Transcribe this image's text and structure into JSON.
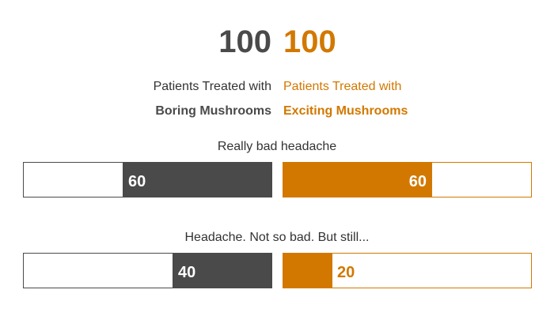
{
  "chart_data": {
    "type": "bar",
    "layout": "diverging-comparison",
    "max_value": 100,
    "groups": [
      {
        "total": "100",
        "label_line1": "Patients Treated with",
        "label_line2": "Boring Mushrooms",
        "color": "#4a4a4a"
      },
      {
        "total": "100",
        "label_line1": "Patients Treated with",
        "label_line2": "Exciting Mushrooms",
        "color": "#d27800"
      }
    ],
    "categories": [
      "Really bad headache",
      "Headache. Not so bad. But still..."
    ],
    "series": [
      {
        "values": [
          60,
          40
        ]
      },
      {
        "values": [
          60,
          20
        ]
      }
    ]
  }
}
